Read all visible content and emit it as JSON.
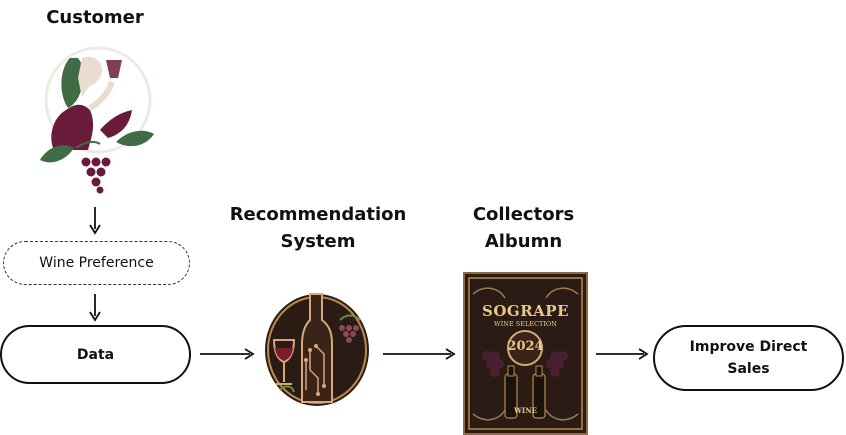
{
  "customer": {
    "heading": "Customer",
    "icon": "woman-drinking-wine-with-grapes-icon"
  },
  "wine_preference": {
    "label": "Wine Preference"
  },
  "data_node": {
    "label": "Data"
  },
  "recommendation": {
    "heading_line1": "Recommendation",
    "heading_line2": "System",
    "icon": "wine-bottle-circuit-icon"
  },
  "collectors": {
    "heading_line1": "Collectors",
    "heading_line2": "Albumn",
    "cover_title": "SOGRAPE",
    "cover_subtitle": "WINE SELECTION",
    "cover_year": "2024",
    "cover_label": "WINE"
  },
  "outcome": {
    "line1": "Improve Direct",
    "line2": "Sales"
  },
  "colors": {
    "wine": "#6b1b3a",
    "leaf": "#3f6b45",
    "gold": "#b88a4a",
    "dark": "#2a1c14"
  }
}
